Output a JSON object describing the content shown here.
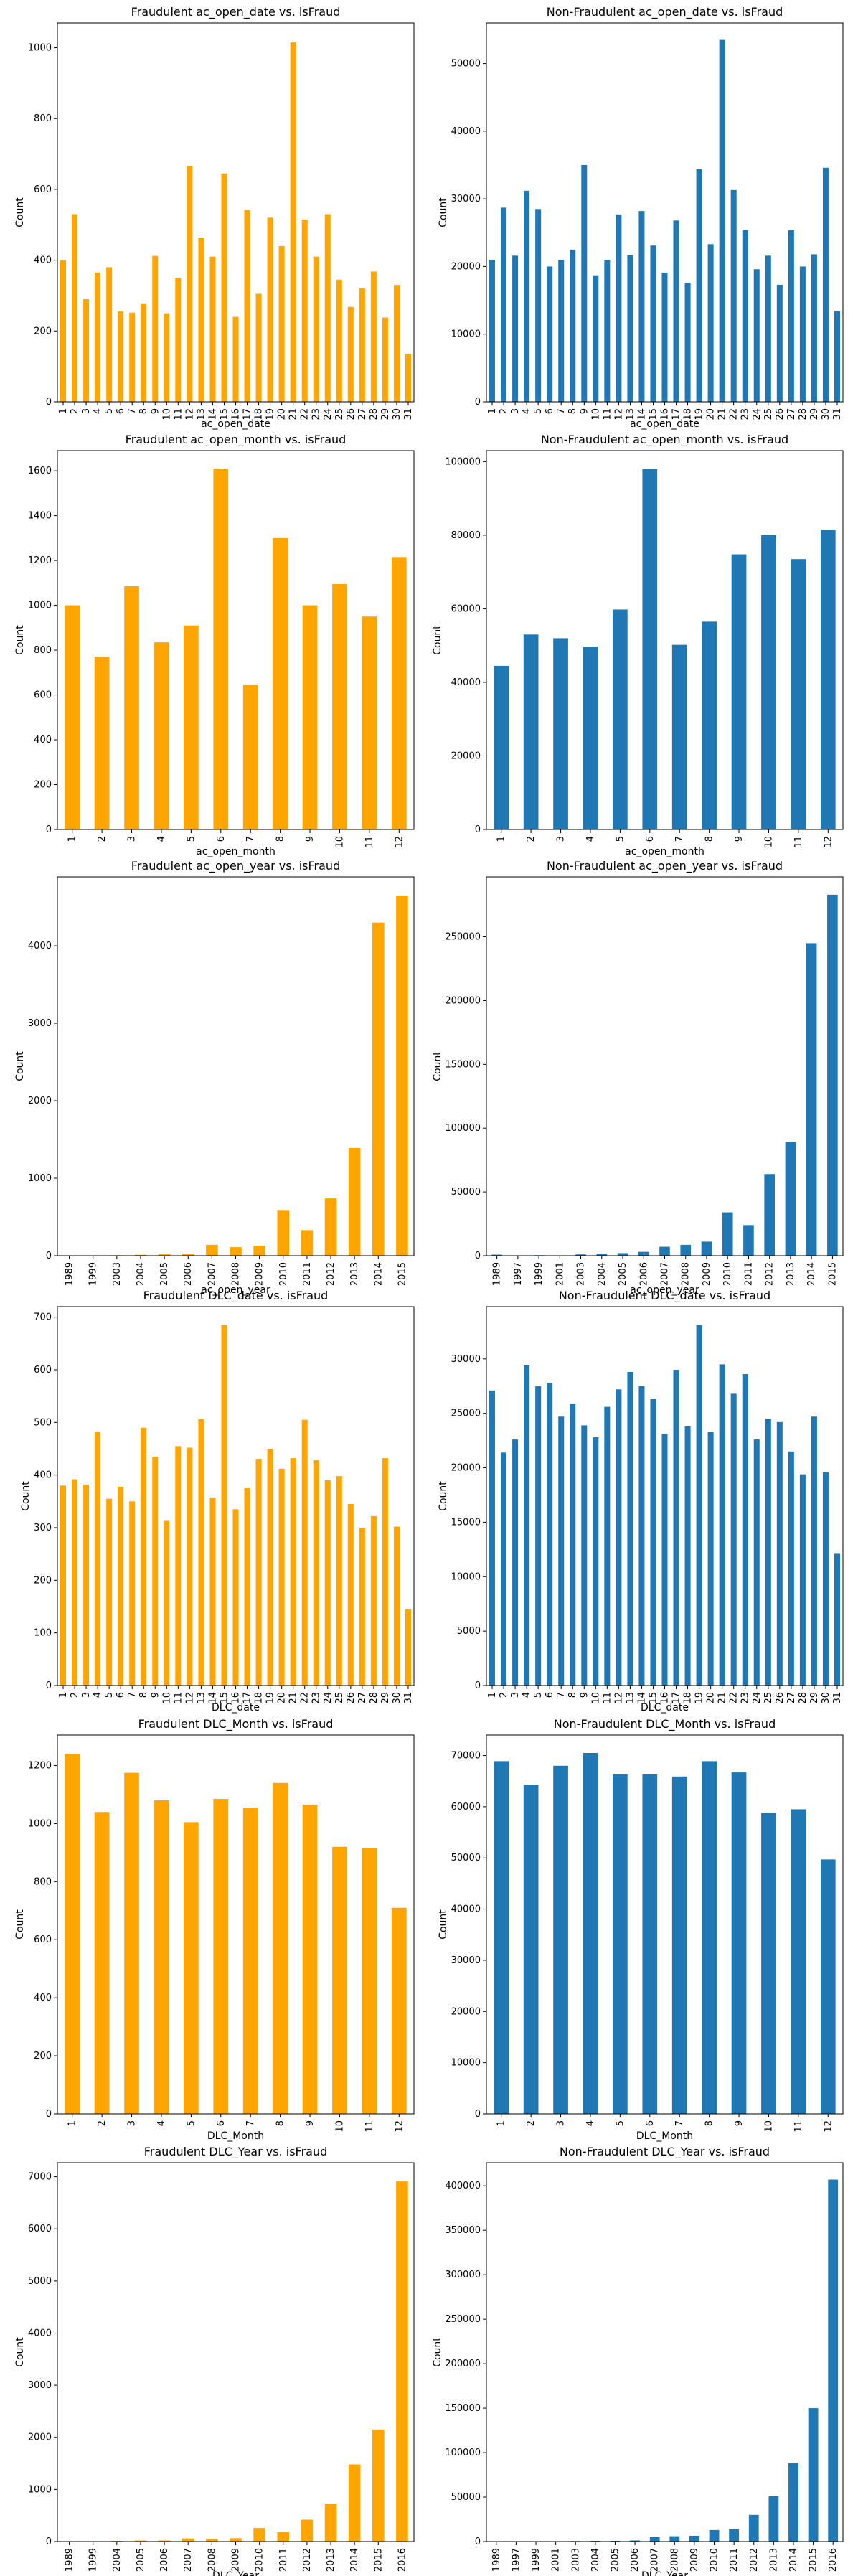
{
  "colors": {
    "fraud": "#ffa500",
    "nonfraud": "#1f77b4",
    "axis": "#000000",
    "background": "#ffffff"
  },
  "chart_data": [
    {
      "type": "bar",
      "title": "Fraudulent ac_open_date vs. isFraud",
      "xlabel": "ac_open_date",
      "ylabel": "Count",
      "color": "#ffa500",
      "categories": [
        "1",
        "2",
        "3",
        "4",
        "5",
        "6",
        "7",
        "8",
        "9",
        "10",
        "11",
        "12",
        "13",
        "14",
        "15",
        "16",
        "17",
        "18",
        "19",
        "20",
        "21",
        "22",
        "23",
        "24",
        "25",
        "26",
        "27",
        "28",
        "29",
        "30",
        "31"
      ],
      "values": [
        400,
        530,
        290,
        365,
        380,
        255,
        252,
        278,
        412,
        250,
        350,
        665,
        462,
        410,
        645,
        240,
        542,
        305,
        520,
        440,
        1015,
        515,
        410,
        530,
        345,
        268,
        320,
        368,
        238,
        330,
        135
      ],
      "ylim": [
        0,
        1070
      ],
      "yticks": [
        0,
        200,
        400,
        600,
        800,
        1000
      ]
    },
    {
      "type": "bar",
      "title": "Non-Fraudulent ac_open_date vs. isFraud",
      "xlabel": "ac_open_date",
      "ylabel": "Count",
      "color": "#1f77b4",
      "categories": [
        "1",
        "2",
        "3",
        "4",
        "5",
        "6",
        "7",
        "8",
        "9",
        "10",
        "11",
        "12",
        "13",
        "14",
        "15",
        "16",
        "17",
        "18",
        "19",
        "20",
        "21",
        "22",
        "23",
        "24",
        "25",
        "26",
        "27",
        "28",
        "29",
        "30",
        "31"
      ],
      "values": [
        21000,
        28700,
        21600,
        31200,
        28500,
        20000,
        21000,
        22500,
        35000,
        18700,
        21000,
        27700,
        21700,
        28200,
        23100,
        19100,
        26800,
        17600,
        34400,
        23300,
        53500,
        31300,
        25400,
        19600,
        21600,
        17300,
        25400,
        20000,
        21800,
        34600,
        13400
      ],
      "ylim": [
        0,
        56000
      ],
      "yticks": [
        0,
        10000,
        20000,
        30000,
        40000,
        50000
      ]
    },
    {
      "type": "bar",
      "title": "Fraudulent ac_open_month vs. isFraud",
      "xlabel": "ac_open_month",
      "ylabel": "Count",
      "color": "#ffa500",
      "categories": [
        "1",
        "2",
        "3",
        "4",
        "5",
        "6",
        "7",
        "8",
        "9",
        "10",
        "11",
        "12"
      ],
      "values": [
        1000,
        770,
        1085,
        835,
        910,
        1610,
        645,
        1300,
        1000,
        1095,
        950,
        1215
      ],
      "ylim": [
        0,
        1690
      ],
      "yticks": [
        0,
        200,
        400,
        600,
        800,
        1000,
        1200,
        1400,
        1600
      ]
    },
    {
      "type": "bar",
      "title": "Non-Fraudulent ac_open_month vs. isFraud",
      "xlabel": "ac_open_month",
      "ylabel": "Count",
      "color": "#1f77b4",
      "categories": [
        "1",
        "2",
        "3",
        "4",
        "5",
        "6",
        "7",
        "8",
        "9",
        "10",
        "11",
        "12"
      ],
      "values": [
        44500,
        53000,
        52000,
        49700,
        59800,
        98000,
        50200,
        56500,
        74800,
        80000,
        73500,
        81500
      ],
      "ylim": [
        0,
        103000
      ],
      "yticks": [
        0,
        20000,
        40000,
        60000,
        80000,
        100000
      ]
    },
    {
      "type": "bar",
      "title": "Fraudulent ac_open_year vs. isFraud",
      "xlabel": "ac_open_year",
      "ylabel": "Count",
      "color": "#ffa500",
      "categories": [
        "1989",
        "1999",
        "2003",
        "2004",
        "2005",
        "2006",
        "2007",
        "2008",
        "2009",
        "2010",
        "2011",
        "2012",
        "2013",
        "2014",
        "2015"
      ],
      "values": [
        4,
        4,
        6,
        12,
        18,
        22,
        140,
        110,
        130,
        590,
        330,
        740,
        1390,
        4300,
        4650
      ],
      "ylim": [
        0,
        4890
      ],
      "yticks": [
        0,
        1000,
        2000,
        3000,
        4000
      ]
    },
    {
      "type": "bar",
      "title": "Non-Fraudulent ac_open_year vs. isFraud",
      "xlabel": "ac_open_year",
      "ylabel": "Count",
      "color": "#1f77b4",
      "categories": [
        "1989",
        "1997",
        "1999",
        "2001",
        "2003",
        "2004",
        "2005",
        "2006",
        "2007",
        "2008",
        "2009",
        "2010",
        "2011",
        "2012",
        "2013",
        "2014",
        "2015"
      ],
      "values": [
        800,
        300,
        400,
        300,
        1000,
        1500,
        2000,
        3000,
        7000,
        8500,
        11000,
        34000,
        24000,
        64000,
        89000,
        245000,
        283000
      ],
      "ylim": [
        0,
        297000
      ],
      "yticks": [
        0,
        50000,
        100000,
        150000,
        200000,
        250000
      ]
    },
    {
      "type": "bar",
      "title": "Fraudulent DLC_date vs. isFraud",
      "xlabel": "DLC_date",
      "ylabel": "Count",
      "color": "#ffa500",
      "categories": [
        "1",
        "2",
        "3",
        "4",
        "5",
        "6",
        "7",
        "8",
        "9",
        "10",
        "11",
        "12",
        "13",
        "14",
        "15",
        "16",
        "17",
        "18",
        "19",
        "20",
        "21",
        "22",
        "23",
        "24",
        "25",
        "26",
        "27",
        "28",
        "29",
        "30",
        "31"
      ],
      "values": [
        380,
        392,
        382,
        482,
        355,
        378,
        350,
        490,
        435,
        313,
        455,
        452,
        506,
        357,
        685,
        335,
        375,
        430,
        450,
        412,
        432,
        505,
        428,
        390,
        398,
        345,
        300,
        322,
        432,
        302,
        145
      ],
      "ylim": [
        0,
        720
      ],
      "yticks": [
        0,
        100,
        200,
        300,
        400,
        500,
        600,
        700
      ]
    },
    {
      "type": "bar",
      "title": "Non-Fraudulent DLC_date vs. isFraud",
      "xlabel": "DLC_date",
      "ylabel": "Count",
      "color": "#1f77b4",
      "categories": [
        "1",
        "2",
        "3",
        "4",
        "5",
        "6",
        "7",
        "8",
        "9",
        "10",
        "11",
        "12",
        "13",
        "14",
        "15",
        "16",
        "17",
        "18",
        "19",
        "20",
        "21",
        "22",
        "23",
        "24",
        "25",
        "26",
        "27",
        "28",
        "29",
        "30",
        "31"
      ],
      "values": [
        27100,
        21400,
        22600,
        29400,
        27500,
        27800,
        24700,
        25900,
        23900,
        22800,
        25600,
        27200,
        28800,
        27500,
        26300,
        23100,
        29000,
        23800,
        33100,
        23300,
        29500,
        26800,
        28600,
        22600,
        24500,
        24200,
        21500,
        19400,
        24700,
        19600,
        12100
      ],
      "ylim": [
        0,
        34800
      ],
      "yticks": [
        0,
        5000,
        10000,
        15000,
        20000,
        25000,
        30000
      ]
    },
    {
      "type": "bar",
      "title": "Fraudulent DLC_Month vs. isFraud",
      "xlabel": "DLC_Month",
      "ylabel": "Count",
      "color": "#ffa500",
      "categories": [
        "1",
        "2",
        "3",
        "4",
        "5",
        "6",
        "7",
        "8",
        "9",
        "10",
        "11",
        "12"
      ],
      "values": [
        1240,
        1040,
        1175,
        1080,
        1005,
        1085,
        1055,
        1140,
        1065,
        920,
        915,
        710
      ],
      "ylim": [
        0,
        1305
      ],
      "yticks": [
        0,
        200,
        400,
        600,
        800,
        1000,
        1200
      ]
    },
    {
      "type": "bar",
      "title": "Non-Fraudulent DLC_Month vs. isFraud",
      "xlabel": "DLC_Month",
      "ylabel": "Count",
      "color": "#1f77b4",
      "categories": [
        "1",
        "2",
        "3",
        "4",
        "5",
        "6",
        "7",
        "8",
        "9",
        "10",
        "11",
        "12"
      ],
      "values": [
        68900,
        64300,
        68000,
        70500,
        66300,
        66300,
        65900,
        68900,
        66700,
        58800,
        59500,
        49700
      ],
      "ylim": [
        0,
        74000
      ],
      "yticks": [
        0,
        10000,
        20000,
        30000,
        40000,
        50000,
        60000,
        70000
      ]
    },
    {
      "type": "bar",
      "title": "Fraudulent DLC_Year vs. isFraud",
      "xlabel": "DLC_Year",
      "ylabel": "Count",
      "color": "#ffa500",
      "categories": [
        "1989",
        "1999",
        "2004",
        "2005",
        "2006",
        "2007",
        "2008",
        "2009",
        "2010",
        "2011",
        "2012",
        "2013",
        "2014",
        "2015",
        "2016"
      ],
      "values": [
        4,
        6,
        14,
        20,
        20,
        60,
        50,
        65,
        260,
        185,
        420,
        730,
        1480,
        2150,
        6910
      ],
      "ylim": [
        0,
        7270
      ],
      "yticks": [
        0,
        1000,
        2000,
        3000,
        4000,
        5000,
        6000,
        7000
      ]
    },
    {
      "type": "bar",
      "title": "Non-Fraudulent DLC_Year vs. isFraud",
      "xlabel": "DLC_Year",
      "ylabel": "Count",
      "color": "#1f77b4",
      "categories": [
        "1989",
        "1997",
        "1999",
        "2001",
        "2003",
        "2004",
        "2005",
        "2006",
        "2007",
        "2008",
        "2009",
        "2010",
        "2011",
        "2012",
        "2013",
        "2014",
        "2015",
        "2016"
      ],
      "values": [
        300,
        200,
        300,
        200,
        600,
        800,
        800,
        1200,
        5000,
        6000,
        6500,
        13000,
        14000,
        30000,
        51000,
        88000,
        150000,
        407000
      ],
      "ylim": [
        0,
        426000
      ],
      "yticks": [
        0,
        50000,
        100000,
        150000,
        200000,
        250000,
        300000,
        350000,
        400000
      ]
    }
  ]
}
